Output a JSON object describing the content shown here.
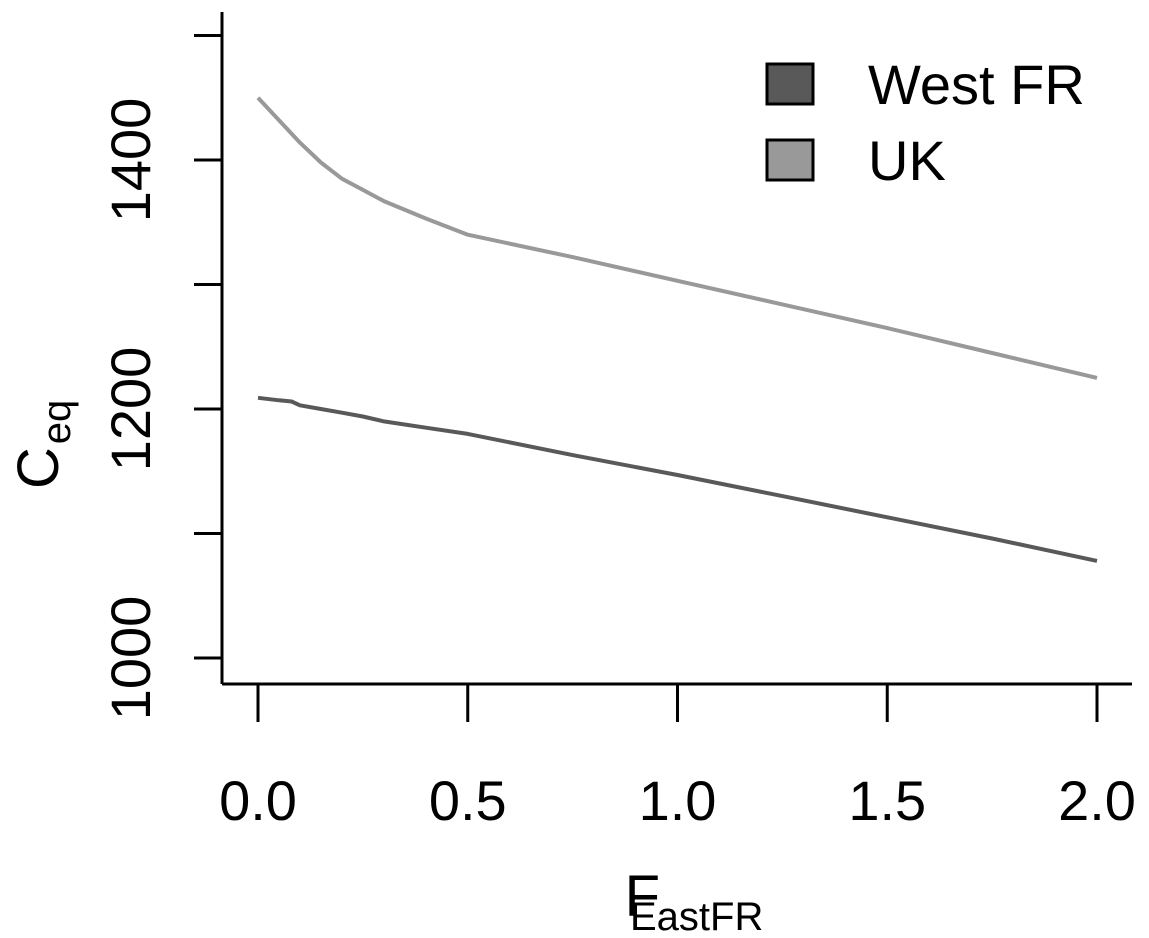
{
  "chart_data": {
    "type": "line",
    "xlabel": "F",
    "xlabel_sub": "EastFR",
    "ylabel": "C",
    "ylabel_sub": "eq",
    "xlim": [
      -0.08,
      2.08
    ],
    "ylim": [
      960,
      1580
    ],
    "x_ticks": [
      0.0,
      0.5,
      1.0,
      1.5,
      2.0
    ],
    "x_tick_labels": [
      "0.0",
      "0.5",
      "1.0",
      "1.5",
      "2.0"
    ],
    "y_ticks": [
      1000,
      1100,
      1200,
      1300,
      1400,
      1500
    ],
    "y_tick_labels": [
      "1000",
      "",
      "1200",
      "",
      "1400",
      ""
    ],
    "legend_position": "top-right",
    "grid": false,
    "series": [
      {
        "name": "West FR",
        "color": "#595959",
        "x": [
          0.0,
          0.05,
          0.08,
          0.1,
          0.15,
          0.2,
          0.25,
          0.3,
          0.4,
          0.5,
          0.75,
          1.0,
          1.25,
          1.5,
          1.75,
          2.0
        ],
        "y": [
          1209,
          1207,
          1206,
          1203,
          1200,
          1197,
          1194,
          1190,
          1185,
          1180,
          1163,
          1147,
          1130,
          1113,
          1096,
          1078
        ]
      },
      {
        "name": "UK",
        "color": "#999999",
        "x": [
          0.0,
          0.05,
          0.1,
          0.15,
          0.2,
          0.25,
          0.3,
          0.4,
          0.5,
          0.75,
          1.0,
          1.25,
          1.5,
          1.75,
          2.0
        ],
        "y": [
          1450,
          1432,
          1414,
          1398,
          1385,
          1376,
          1367,
          1353,
          1340,
          1322,
          1303,
          1284,
          1265,
          1245,
          1225
        ]
      }
    ]
  }
}
